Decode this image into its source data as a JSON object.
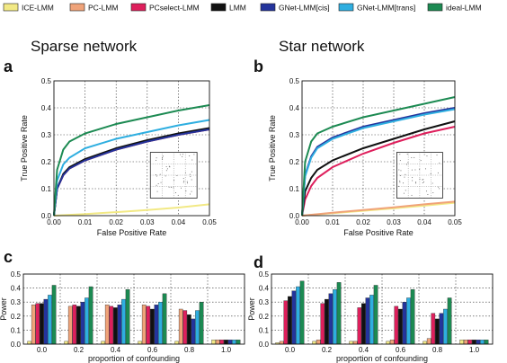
{
  "colors": {
    "ICE-LMM": "#f2e985",
    "PC-LMM": "#f0a379",
    "PCselect-LMM": "#de1f5c",
    "LMM": "#111111",
    "GNet-LMM[cis]": "#24349c",
    "GNet-LMM[trans]": "#2eaee0",
    "ideal-LMM": "#1c8a52"
  },
  "legend": [
    "ICE-LMM",
    "PC-LMM",
    "PCselect-LMM",
    "LMM",
    "GNet-LMM[cis]",
    "GNet-LMM[trans]",
    "ideal-LMM"
  ],
  "titles": {
    "left": "Sparse network",
    "right": "Star network"
  },
  "panel_letters": [
    "a",
    "b",
    "c",
    "d"
  ],
  "chart_data": [
    {
      "panel": "a",
      "type": "line",
      "xlabel": "False Positive Rate",
      "ylabel": "True Positive Rate",
      "xlim": [
        0,
        0.05
      ],
      "ylim": [
        0,
        0.5
      ],
      "xticks": [
        "0.00",
        "0.01",
        "0.02",
        "0.03",
        "0.04",
        "0.05"
      ],
      "yticks": [
        "0.0",
        "0.1",
        "0.2",
        "0.3",
        "0.4",
        "0.5"
      ],
      "grid": true,
      "inset": "scatter",
      "series": [
        {
          "name": "ICE-LMM",
          "x": [
            0,
            0.01,
            0.02,
            0.03,
            0.04,
            0.05
          ],
          "y": [
            0,
            0.006,
            0.013,
            0.021,
            0.03,
            0.042
          ]
        },
        {
          "name": "PC-LMM",
          "x": [
            0,
            0.001,
            0.003,
            0.005,
            0.01,
            0.02,
            0.03,
            0.04,
            0.05
          ],
          "y": [
            0,
            0.1,
            0.15,
            0.175,
            0.205,
            0.245,
            0.275,
            0.3,
            0.32
          ]
        },
        {
          "name": "PCselect-LMM",
          "x": [
            0,
            0.001,
            0.003,
            0.005,
            0.01,
            0.02,
            0.03,
            0.04,
            0.05
          ],
          "y": [
            0,
            0.1,
            0.15,
            0.175,
            0.205,
            0.245,
            0.275,
            0.3,
            0.32
          ]
        },
        {
          "name": "LMM",
          "x": [
            0,
            0.001,
            0.003,
            0.005,
            0.01,
            0.02,
            0.03,
            0.04,
            0.05
          ],
          "y": [
            0,
            0.1,
            0.155,
            0.18,
            0.21,
            0.25,
            0.28,
            0.305,
            0.325
          ]
        },
        {
          "name": "GNet-LMM[cis]",
          "x": [
            0,
            0.001,
            0.003,
            0.005,
            0.01,
            0.02,
            0.03,
            0.04,
            0.05
          ],
          "y": [
            0,
            0.1,
            0.15,
            0.175,
            0.205,
            0.245,
            0.275,
            0.3,
            0.32
          ]
        },
        {
          "name": "GNet-LMM[trans]",
          "x": [
            0,
            0.001,
            0.003,
            0.005,
            0.01,
            0.02,
            0.03,
            0.04,
            0.05
          ],
          "y": [
            0,
            0.13,
            0.19,
            0.215,
            0.25,
            0.285,
            0.31,
            0.335,
            0.355
          ]
        },
        {
          "name": "ideal-LMM",
          "x": [
            0,
            0.001,
            0.003,
            0.005,
            0.01,
            0.02,
            0.03,
            0.04,
            0.05
          ],
          "y": [
            0,
            0.17,
            0.245,
            0.275,
            0.305,
            0.34,
            0.365,
            0.39,
            0.41
          ]
        }
      ]
    },
    {
      "panel": "b",
      "type": "line",
      "xlabel": "False Positive Rate",
      "ylabel": "True Positive Rate",
      "xlim": [
        0,
        0.05
      ],
      "ylim": [
        0,
        0.5
      ],
      "xticks": [
        "0.00",
        "0.01",
        "0.02",
        "0.03",
        "0.04",
        "0.05"
      ],
      "yticks": [
        "0.0",
        "0.1",
        "0.2",
        "0.3",
        "0.4",
        "0.5"
      ],
      "grid": true,
      "inset": "scatter",
      "series": [
        {
          "name": "ICE-LMM",
          "x": [
            0,
            0.01,
            0.02,
            0.03,
            0.04,
            0.05
          ],
          "y": [
            0,
            0.009,
            0.018,
            0.027,
            0.037,
            0.048
          ]
        },
        {
          "name": "PC-LMM",
          "x": [
            0,
            0.01,
            0.02,
            0.03,
            0.04,
            0.05
          ],
          "y": [
            0,
            0.011,
            0.021,
            0.031,
            0.042,
            0.052
          ]
        },
        {
          "name": "PCselect-LMM",
          "x": [
            0,
            0.001,
            0.003,
            0.005,
            0.01,
            0.02,
            0.03,
            0.04,
            0.05
          ],
          "y": [
            0,
            0.06,
            0.11,
            0.14,
            0.18,
            0.23,
            0.27,
            0.305,
            0.33
          ]
        },
        {
          "name": "LMM",
          "x": [
            0,
            0.001,
            0.003,
            0.005,
            0.01,
            0.02,
            0.03,
            0.04,
            0.05
          ],
          "y": [
            0,
            0.09,
            0.14,
            0.17,
            0.205,
            0.25,
            0.285,
            0.32,
            0.35
          ]
        },
        {
          "name": "GNet-LMM[cis]",
          "x": [
            0,
            0.001,
            0.003,
            0.005,
            0.01,
            0.02,
            0.03,
            0.04,
            0.05
          ],
          "y": [
            0,
            0.15,
            0.22,
            0.255,
            0.29,
            0.33,
            0.355,
            0.38,
            0.4
          ]
        },
        {
          "name": "GNet-LMM[trans]",
          "x": [
            0,
            0.001,
            0.003,
            0.005,
            0.01,
            0.02,
            0.03,
            0.04,
            0.05
          ],
          "y": [
            0,
            0.145,
            0.215,
            0.25,
            0.285,
            0.325,
            0.35,
            0.375,
            0.395
          ]
        },
        {
          "name": "ideal-LMM",
          "x": [
            0,
            0.001,
            0.003,
            0.005,
            0.01,
            0.02,
            0.03,
            0.04,
            0.05
          ],
          "y": [
            0,
            0.2,
            0.275,
            0.305,
            0.33,
            0.365,
            0.39,
            0.415,
            0.44
          ]
        }
      ]
    },
    {
      "panel": "c",
      "type": "bar",
      "xlabel": "proportion of confounding",
      "ylabel": "Power",
      "ylim": [
        0,
        0.5
      ],
      "yticks": [
        "0.0",
        "0.1",
        "0.2",
        "0.3",
        "0.4",
        "0.5"
      ],
      "categories": [
        "0.0",
        "0.2",
        "0.4",
        "0.6",
        "0.8",
        "1.0"
      ],
      "grid": true,
      "series": [
        {
          "name": "ICE-LMM",
          "values": [
            0.02,
            0.02,
            0.02,
            0.02,
            0.02,
            0.03
          ]
        },
        {
          "name": "PC-LMM",
          "values": [
            0.28,
            0.27,
            0.28,
            0.28,
            0.25,
            0.03
          ]
        },
        {
          "name": "PCselect-LMM",
          "values": [
            0.29,
            0.28,
            0.27,
            0.27,
            0.24,
            0.03
          ]
        },
        {
          "name": "LMM",
          "values": [
            0.29,
            0.27,
            0.26,
            0.25,
            0.21,
            0.03
          ]
        },
        {
          "name": "GNet-LMM[cis]",
          "values": [
            0.32,
            0.3,
            0.28,
            0.28,
            0.18,
            0.03
          ]
        },
        {
          "name": "GNet-LMM[trans]",
          "values": [
            0.35,
            0.33,
            0.32,
            0.3,
            0.24,
            0.03
          ]
        },
        {
          "name": "ideal-LMM",
          "values": [
            0.42,
            0.41,
            0.39,
            0.36,
            0.3,
            0.03
          ]
        }
      ]
    },
    {
      "panel": "d",
      "type": "bar",
      "xlabel": "proportion of confounding",
      "ylabel": "Power",
      "ylim": [
        0,
        0.5
      ],
      "yticks": [
        "0.0",
        "0.1",
        "0.2",
        "0.3",
        "0.4",
        "0.5"
      ],
      "categories": [
        "0.0",
        "0.2",
        "0.4",
        "0.6",
        "0.8",
        "1.0"
      ],
      "grid": true,
      "series": [
        {
          "name": "ICE-LMM",
          "values": [
            0.01,
            0.02,
            0.02,
            0.02,
            0.02,
            0.03
          ]
        },
        {
          "name": "PC-LMM",
          "values": [
            0.02,
            0.03,
            0.02,
            0.03,
            0.04,
            0.03
          ]
        },
        {
          "name": "PCselect-LMM",
          "values": [
            0.31,
            0.29,
            0.26,
            0.27,
            0.22,
            0.03
          ]
        },
        {
          "name": "LMM",
          "values": [
            0.34,
            0.32,
            0.29,
            0.25,
            0.18,
            0.03
          ]
        },
        {
          "name": "GNet-LMM[cis]",
          "values": [
            0.38,
            0.36,
            0.33,
            0.3,
            0.22,
            0.03
          ]
        },
        {
          "name": "GNet-LMM[trans]",
          "values": [
            0.41,
            0.39,
            0.35,
            0.33,
            0.25,
            0.03
          ]
        },
        {
          "name": "ideal-LMM",
          "values": [
            0.45,
            0.44,
            0.42,
            0.39,
            0.33,
            0.03
          ]
        }
      ]
    }
  ]
}
